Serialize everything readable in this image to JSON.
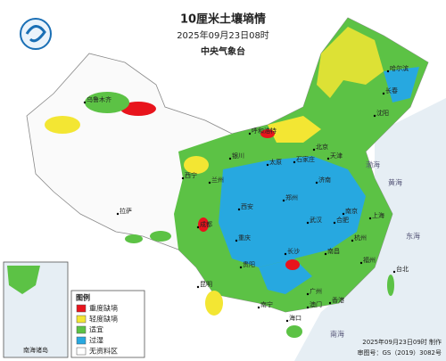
{
  "header": {
    "title": "10厘米土壤墒情",
    "time": "2025年09月23日08时",
    "agency": "中央气象台"
  },
  "legend": {
    "title": "图例",
    "items": [
      "重度缺墒",
      "轻度缺墒",
      "适宜",
      "过湿",
      "无资料区"
    ]
  },
  "inset": {
    "label": "南海诸岛"
  },
  "footer": {
    "made": "2025年09月23日09时 制作",
    "approval": "审图号：GS（2019）3082号"
  },
  "places": [
    "北京",
    "天津",
    "石家庄",
    "太原",
    "郑州",
    "西安",
    "兰州",
    "西宁",
    "银川",
    "呼和浩特",
    "沈阳",
    "长春",
    "哈尔滨",
    "济南",
    "南京",
    "上海",
    "合肥",
    "武汉",
    "杭州",
    "长沙",
    "南昌",
    "福州",
    "台北",
    "广州",
    "香港",
    "澳门",
    "南宁",
    "海口",
    "贵阳",
    "昆明",
    "成都",
    "重庆",
    "拉萨",
    "乌鲁木齐"
  ],
  "seas": [
    "渤海",
    "黄海",
    "东海",
    "南海"
  ]
}
